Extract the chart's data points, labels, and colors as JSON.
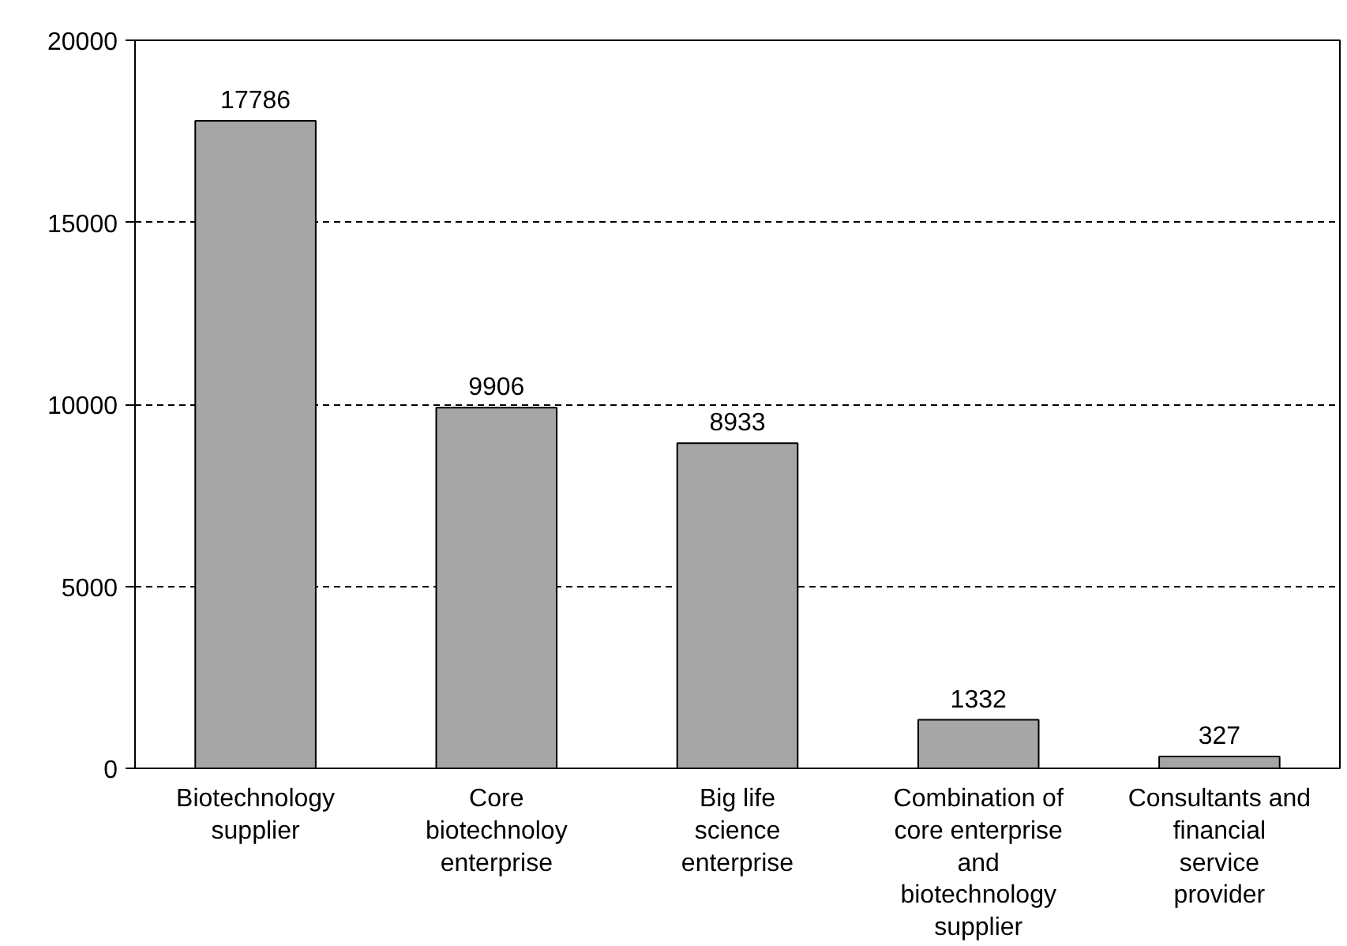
{
  "chart_data": {
    "type": "bar",
    "categories": [
      "Biotechnology supplier",
      "Core biotechnoloy enterprise",
      "Big life science enterprise",
      "Combination of core enterprise and biotechnology supplier",
      "Consultants and financial service provider"
    ],
    "values": [
      17786,
      9906,
      8933,
      1332,
      327
    ],
    "color": "#a6a6a6",
    "ylim": [
      0,
      20000
    ],
    "yticks": [
      0,
      5000,
      10000,
      15000,
      20000
    ],
    "grid": "y",
    "data_labels": true
  }
}
